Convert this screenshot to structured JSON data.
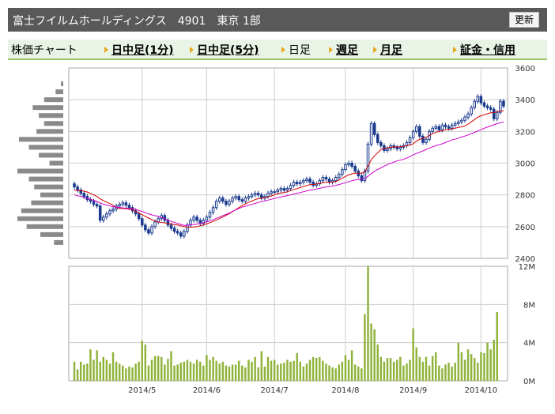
{
  "header": {
    "title": "富士フイルムホールディングス　4901　東京 1部",
    "refresh_label": "更新"
  },
  "nav": {
    "chart_label": "株価チャート",
    "items": [
      {
        "label": "日中足(1分)",
        "link": true
      },
      {
        "label": "日中足(5分)",
        "link": true
      },
      {
        "label": "日足",
        "link": false
      },
      {
        "label": "週足",
        "link": true
      },
      {
        "label": "月足",
        "link": true
      },
      {
        "label": "証金・信用",
        "link": true
      }
    ]
  },
  "colors": {
    "candle": "#1a3a8f",
    "ma_short": "#d40000",
    "ma_long": "#cc00cc",
    "volume": "#8fb33a",
    "profile": "#8a8a8a",
    "grid": "#cccccc"
  },
  "chart_data": {
    "type": "candlestick",
    "price_axis": {
      "min": 2400,
      "max": 3600,
      "ticks": [
        3600,
        3400,
        3200,
        3000,
        2800,
        2600,
        2400
      ]
    },
    "volume_axis": {
      "min": 0,
      "max": 12000000,
      "tick_labels": [
        "12M",
        "8M",
        "4M",
        "0M"
      ]
    },
    "x_ticks": [
      {
        "label": "2014/5",
        "index": 21
      },
      {
        "label": "2014/6",
        "index": 41
      },
      {
        "label": "2014/7",
        "index": 62
      },
      {
        "label": "2014/8",
        "index": 84
      },
      {
        "label": "2014/9",
        "index": 105
      },
      {
        "label": "2014/10",
        "index": 126
      }
    ],
    "closes": [
      2850,
      2830,
      2810,
      2790,
      2770,
      2760,
      2740,
      2730,
      2640,
      2660,
      2680,
      2700,
      2710,
      2730,
      2740,
      2750,
      2735,
      2720,
      2700,
      2680,
      2650,
      2610,
      2580,
      2560,
      2600,
      2630,
      2650,
      2670,
      2640,
      2610,
      2590,
      2570,
      2560,
      2540,
      2570,
      2610,
      2640,
      2660,
      2640,
      2620,
      2640,
      2660,
      2690,
      2720,
      2760,
      2780,
      2760,
      2740,
      2760,
      2780,
      2790,
      2770,
      2760,
      2780,
      2790,
      2800,
      2810,
      2800,
      2780,
      2790,
      2810,
      2820,
      2820,
      2830,
      2840,
      2830,
      2840,
      2860,
      2880,
      2870,
      2880,
      2890,
      2900,
      2880,
      2860,
      2870,
      2890,
      2910,
      2900,
      2880,
      2890,
      2910,
      2930,
      2960,
      2990,
      3000,
      2980,
      2950,
      2920,
      2890,
      2950,
      3120,
      3250,
      3180,
      3130,
      3110,
      3080,
      3090,
      3110,
      3100,
      3090,
      3100,
      3110,
      3130,
      3160,
      3200,
      3230,
      3170,
      3130,
      3150,
      3200,
      3220,
      3230,
      3210,
      3240,
      3230,
      3220,
      3240,
      3250,
      3260,
      3270,
      3290,
      3310,
      3350,
      3390,
      3420,
      3380,
      3360,
      3350,
      3340,
      3280,
      3320,
      3390,
      3360
    ],
    "volumes": [
      2.0,
      1.2,
      2.0,
      1.7,
      1.8,
      3.3,
      2.2,
      3.2,
      2.0,
      2.5,
      2.2,
      1.8,
      3.0,
      2.0,
      1.8,
      1.6,
      1.3,
      1.5,
      1.4,
      1.8,
      2.0,
      4.2,
      3.8,
      1.6,
      2.2,
      2.6,
      2.6,
      2.5,
      1.7,
      2.3,
      3.1,
      1.6,
      1.7,
      1.9,
      2.0,
      2.2,
      2.0,
      1.8,
      2.2,
      2.0,
      1.6,
      2.7,
      2.2,
      2.5,
      2.1,
      1.8,
      2.0,
      1.6,
      1.5,
      1.7,
      1.7,
      2.1,
      1.6,
      1.4,
      2.2,
      2.0,
      2.5,
      1.4,
      3.1,
      1.5,
      2.5,
      2.1,
      2.2,
      1.7,
      1.8,
      1.9,
      2.2,
      2.0,
      2.1,
      2.9,
      2.0,
      1.5,
      1.8,
      2.2,
      2.5,
      2.4,
      2.5,
      2.1,
      1.8,
      1.6,
      1.4,
      1.3,
      1.7,
      2.0,
      2.7,
      2.2,
      3.2,
      1.7,
      1.5,
      1.3,
      7.0,
      12.0,
      6.0,
      5.4,
      3.8,
      2.5,
      2.0,
      2.4,
      2.4,
      2.0,
      2.2,
      2.5,
      1.6,
      1.8,
      2.2,
      5.5,
      3.5,
      2.5,
      2.0,
      2.5,
      1.6,
      2.6,
      3.0,
      1.6,
      1.3,
      1.7,
      1.9,
      1.5,
      1.9,
      4.0,
      3.0,
      2.2,
      3.3,
      2.8,
      2.4,
      1.9,
      3.0,
      2.9,
      4.0,
      3.3,
      4.3,
      7.2
    ],
    "series": [
      {
        "name": "",
        "type": "line",
        "values": [
          2830,
          2828,
          2826,
          2824,
          2818,
          2810,
          2800,
          2790,
          2775,
          2764,
          2754,
          2745,
          2735,
          2720,
          2715,
          2713,
          2712,
          2710,
          2705,
          2696,
          2685,
          2675,
          2665,
          2654,
          2644,
          2635,
          2629,
          2626,
          2624,
          2620,
          2617,
          2612,
          2610,
          2605,
          2600,
          2596,
          2596,
          2598,
          2600,
          2605,
          2610,
          2617,
          2625,
          2633,
          2641,
          2651,
          2661,
          2671,
          2681,
          2695,
          2707,
          2720,
          2733,
          2743,
          2754,
          2761,
          2770,
          2776,
          2779,
          2782,
          2787,
          2793,
          2800,
          2808,
          2812,
          2815,
          2820,
          2827,
          2834,
          2839,
          2846,
          2853,
          2859,
          2864,
          2865,
          2868,
          2872,
          2877,
          2879,
          2879,
          2882,
          2885,
          2894,
          2906,
          2916,
          2926,
          2933,
          2937,
          2937,
          2937,
          2944,
          2982,
          3022,
          3046,
          3066,
          3085,
          3094,
          3097,
          3100,
          3102,
          3103,
          3104,
          3106,
          3110,
          3114,
          3123,
          3139,
          3150,
          3156,
          3163,
          3175,
          3186,
          3195,
          3199,
          3205,
          3210,
          3213,
          3216,
          3220,
          3225,
          3229,
          3235,
          3246,
          3260,
          3275,
          3290,
          3299,
          3305,
          3311,
          3317,
          3320,
          3322,
          3328,
          3331
        ]
      },
      {
        "name": "",
        "type": "line",
        "values": [
          2800,
          2795,
          2790,
          2784,
          2778,
          2772,
          2766,
          2759,
          2749,
          2742,
          2736,
          2730,
          2726,
          2723,
          2721,
          2718,
          2716,
          2714,
          2712,
          2708,
          2702,
          2696,
          2688,
          2680,
          2674,
          2670,
          2664,
          2657,
          2650,
          2640,
          2633,
          2626,
          2620,
          2614,
          2608,
          2608,
          2612,
          2613,
          2616,
          2620,
          2624,
          2630,
          2636,
          2643,
          2653,
          2660,
          2669,
          2677,
          2685,
          2697,
          2706,
          2714,
          2723,
          2728,
          2735,
          2740,
          2746,
          2752,
          2757,
          2762,
          2767,
          2772,
          2778,
          2782,
          2787,
          2791,
          2796,
          2800,
          2806,
          2810,
          2815,
          2820,
          2825,
          2830,
          2833,
          2837,
          2841,
          2846,
          2850,
          2852,
          2856,
          2860,
          2865,
          2871,
          2877,
          2884,
          2889,
          2894,
          2897,
          2899,
          2905,
          2917,
          2934,
          2949,
          2961,
          2970,
          2981,
          2991,
          2999,
          3007,
          3014,
          3019,
          3024,
          3032,
          3042,
          3052,
          3061,
          3069,
          3077,
          3086,
          3095,
          3103,
          3110,
          3116,
          3122,
          3130,
          3138,
          3146,
          3151,
          3158,
          3165,
          3171,
          3178,
          3185,
          3194,
          3203,
          3211,
          3220,
          3227,
          3234,
          3242,
          3249,
          3255,
          3260
        ]
      }
    ],
    "volume_profile": [
      {
        "price": 3590,
        "value": 0.0
      },
      {
        "price": 3530,
        "value": 0.0
      },
      {
        "price": 3500,
        "value": 0.3
      },
      {
        "price": 3450,
        "value": 1.0
      },
      {
        "price": 3400,
        "value": 2.5
      },
      {
        "price": 3350,
        "value": 4.0
      },
      {
        "price": 3300,
        "value": 3.2
      },
      {
        "price": 3250,
        "value": 2.5
      },
      {
        "price": 3200,
        "value": 3.5
      },
      {
        "price": 3150,
        "value": 5.8
      },
      {
        "price": 3100,
        "value": 4.5
      },
      {
        "price": 3050,
        "value": 3.2
      },
      {
        "price": 3000,
        "value": 1.8
      },
      {
        "price": 2950,
        "value": 6.0
      },
      {
        "price": 2900,
        "value": 4.5
      },
      {
        "price": 2850,
        "value": 3.8
      },
      {
        "price": 2800,
        "value": 3.0
      },
      {
        "price": 2750,
        "value": 4.2
      },
      {
        "price": 2700,
        "value": 5.5
      },
      {
        "price": 2650,
        "value": 6.0
      },
      {
        "price": 2600,
        "value": 4.8
      },
      {
        "price": 2550,
        "value": 3.0
      },
      {
        "price": 2500,
        "value": 1.2
      }
    ]
  }
}
